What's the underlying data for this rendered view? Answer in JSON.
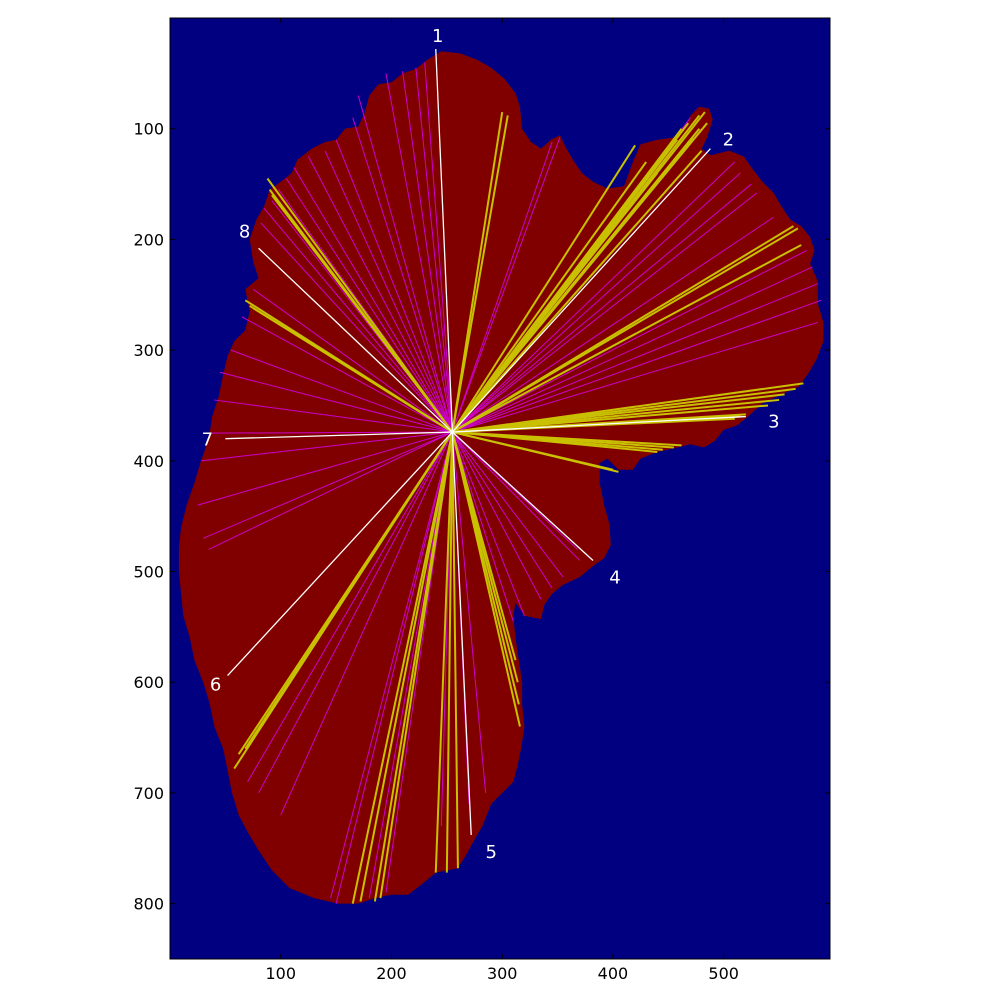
{
  "chart_data": {
    "type": "image-with-overlay",
    "title": "",
    "xlabel": "",
    "ylabel": "",
    "xlim": [
      0,
      596
    ],
    "ylim": [
      850,
      0
    ],
    "x_ticks": [
      100,
      200,
      300,
      400,
      500
    ],
    "y_ticks": [
      100,
      200,
      300,
      400,
      500,
      600,
      700,
      800
    ],
    "x_tick_labels": [
      "100",
      "200",
      "300",
      "400",
      "500"
    ],
    "y_tick_labels": [
      "100",
      "200",
      "300",
      "400",
      "500",
      "600",
      "700",
      "800"
    ],
    "grid": false,
    "colors": {
      "background": "#000080",
      "region": "#800000",
      "magenta_rays": "#cc00cc",
      "yellow_rays": "#c8c000",
      "white_rays": "#ffffff",
      "label_text": "#ffffff"
    },
    "center": [
      255,
      374
    ],
    "region_outline": [
      [
        245,
        30
      ],
      [
        262,
        32
      ],
      [
        278,
        38
      ],
      [
        290,
        45
      ],
      [
        302,
        55
      ],
      [
        312,
        68
      ],
      [
        316,
        80
      ],
      [
        318,
        100
      ],
      [
        326,
        112
      ],
      [
        335,
        118
      ],
      [
        344,
        110
      ],
      [
        352,
        106
      ],
      [
        358,
        118
      ],
      [
        365,
        130
      ],
      [
        372,
        140
      ],
      [
        382,
        148
      ],
      [
        395,
        154
      ],
      [
        410,
        152
      ],
      [
        418,
        130
      ],
      [
        425,
        114
      ],
      [
        440,
        110
      ],
      [
        455,
        108
      ],
      [
        465,
        100
      ],
      [
        470,
        88
      ],
      [
        478,
        80
      ],
      [
        487,
        82
      ],
      [
        490,
        92
      ],
      [
        485,
        108
      ],
      [
        480,
        118
      ],
      [
        488,
        124
      ],
      [
        505,
        120
      ],
      [
        518,
        125
      ],
      [
        525,
        135
      ],
      [
        535,
        148
      ],
      [
        545,
        158
      ],
      [
        552,
        170
      ],
      [
        560,
        182
      ],
      [
        570,
        188
      ],
      [
        578,
        198
      ],
      [
        582,
        210
      ],
      [
        578,
        222
      ],
      [
        585,
        238
      ],
      [
        585,
        258
      ],
      [
        590,
        275
      ],
      [
        590,
        292
      ],
      [
        584,
        308
      ],
      [
        577,
        320
      ],
      [
        568,
        333
      ],
      [
        552,
        340
      ],
      [
        535,
        348
      ],
      [
        522,
        360
      ],
      [
        512,
        368
      ],
      [
        500,
        372
      ],
      [
        492,
        382
      ],
      [
        482,
        388
      ],
      [
        470,
        385
      ],
      [
        458,
        388
      ],
      [
        440,
        392
      ],
      [
        425,
        398
      ],
      [
        418,
        408
      ],
      [
        405,
        408
      ],
      [
        395,
        398
      ],
      [
        388,
        402
      ],
      [
        388,
        420
      ],
      [
        392,
        440
      ],
      [
        397,
        458
      ],
      [
        398,
        476
      ],
      [
        392,
        488
      ],
      [
        382,
        495
      ],
      [
        370,
        505
      ],
      [
        355,
        512
      ],
      [
        345,
        520
      ],
      [
        338,
        530
      ],
      [
        335,
        543
      ],
      [
        320,
        540
      ],
      [
        312,
        528
      ],
      [
        310,
        540
      ],
      [
        312,
        560
      ],
      [
        315,
        580
      ],
      [
        318,
        600
      ],
      [
        318,
        620
      ],
      [
        320,
        640
      ],
      [
        317,
        660
      ],
      [
        314,
        675
      ],
      [
        310,
        690
      ],
      [
        300,
        700
      ],
      [
        290,
        710
      ],
      [
        282,
        730
      ],
      [
        275,
        742
      ],
      [
        268,
        755
      ],
      [
        260,
        768
      ],
      [
        240,
        772
      ],
      [
        228,
        782
      ],
      [
        215,
        792
      ],
      [
        200,
        792
      ],
      [
        185,
        795
      ],
      [
        170,
        800
      ],
      [
        152,
        800
      ],
      [
        130,
        795
      ],
      [
        108,
        786
      ],
      [
        92,
        770
      ],
      [
        80,
        752
      ],
      [
        70,
        735
      ],
      [
        62,
        720
      ],
      [
        56,
        700
      ],
      [
        52,
        680
      ],
      [
        48,
        660
      ],
      [
        40,
        640
      ],
      [
        36,
        620
      ],
      [
        30,
        600
      ],
      [
        22,
        580
      ],
      [
        18,
        560
      ],
      [
        12,
        540
      ],
      [
        10,
        520
      ],
      [
        8,
        500
      ],
      [
        8,
        478
      ],
      [
        10,
        460
      ],
      [
        15,
        440
      ],
      [
        22,
        420
      ],
      [
        28,
        400
      ],
      [
        35,
        380
      ],
      [
        38,
        360
      ],
      [
        44,
        342
      ],
      [
        48,
        322
      ],
      [
        52,
        305
      ],
      [
        58,
        292
      ],
      [
        68,
        282
      ],
      [
        72,
        265
      ],
      [
        68,
        245
      ],
      [
        80,
        235
      ],
      [
        75,
        220
      ],
      [
        72,
        200
      ],
      [
        78,
        182
      ],
      [
        85,
        170
      ],
      [
        90,
        155
      ],
      [
        100,
        148
      ],
      [
        110,
        140
      ],
      [
        115,
        128
      ],
      [
        128,
        118
      ],
      [
        140,
        112
      ],
      [
        150,
        110
      ],
      [
        158,
        100
      ],
      [
        170,
        98
      ],
      [
        176,
        85
      ],
      [
        180,
        70
      ],
      [
        188,
        60
      ],
      [
        200,
        58
      ],
      [
        210,
        50
      ],
      [
        222,
        46
      ],
      [
        232,
        38
      ]
    ],
    "ray_ends_magenta": [
      [
        195,
        50
      ],
      [
        210,
        48
      ],
      [
        222,
        45
      ],
      [
        230,
        40
      ],
      [
        170,
        70
      ],
      [
        165,
        90
      ],
      [
        150,
        110
      ],
      [
        140,
        120
      ],
      [
        125,
        125
      ],
      [
        112,
        135
      ],
      [
        105,
        145
      ],
      [
        98,
        155
      ],
      [
        92,
        165
      ],
      [
        85,
        172
      ],
      [
        82,
        185
      ],
      [
        75,
        245
      ],
      [
        65,
        270
      ],
      [
        55,
        300
      ],
      [
        45,
        320
      ],
      [
        40,
        345
      ],
      [
        35,
        375
      ],
      [
        28,
        400
      ],
      [
        25,
        440
      ],
      [
        30,
        470
      ],
      [
        35,
        480
      ],
      [
        345,
        112
      ],
      [
        352,
        108
      ],
      [
        470,
        90
      ],
      [
        480,
        100
      ],
      [
        510,
        130
      ],
      [
        515,
        140
      ],
      [
        525,
        150
      ],
      [
        530,
        158
      ],
      [
        545,
        180
      ],
      [
        560,
        190
      ],
      [
        575,
        210
      ],
      [
        580,
        225
      ],
      [
        585,
        240
      ],
      [
        588,
        255
      ],
      [
        585,
        275
      ],
      [
        368,
        480
      ],
      [
        370,
        490
      ],
      [
        355,
        505
      ],
      [
        345,
        515
      ],
      [
        335,
        525
      ],
      [
        320,
        540
      ],
      [
        310,
        545
      ],
      [
        285,
        700
      ],
      [
        270,
        710
      ],
      [
        245,
        730
      ],
      [
        195,
        790
      ],
      [
        180,
        795
      ],
      [
        150,
        800
      ],
      [
        145,
        795
      ],
      [
        100,
        720
      ],
      [
        80,
        700
      ],
      [
        70,
        690
      ]
    ],
    "ray_ends_yellow": [
      [
        300,
        85
      ],
      [
        305,
        88
      ],
      [
        420,
        115
      ],
      [
        430,
        130
      ],
      [
        440,
        140
      ],
      [
        458,
        110
      ],
      [
        462,
        100
      ],
      [
        468,
        95
      ],
      [
        478,
        88
      ],
      [
        483,
        85
      ],
      [
        485,
        95
      ],
      [
        478,
        100
      ],
      [
        472,
        108
      ],
      [
        480,
        120
      ],
      [
        563,
        188
      ],
      [
        567,
        190
      ],
      [
        570,
        205
      ],
      [
        572,
        330
      ],
      [
        565,
        335
      ],
      [
        555,
        340
      ],
      [
        550,
        345
      ],
      [
        540,
        350
      ],
      [
        520,
        358
      ],
      [
        515,
        360
      ],
      [
        510,
        362
      ],
      [
        462,
        386
      ],
      [
        455,
        388
      ],
      [
        445,
        390
      ],
      [
        440,
        392
      ],
      [
        400,
        408
      ],
      [
        405,
        410
      ],
      [
        312,
        580
      ],
      [
        314,
        600
      ],
      [
        315,
        620
      ],
      [
        316,
        640
      ],
      [
        190,
        795
      ],
      [
        185,
        798
      ],
      [
        172,
        798
      ],
      [
        165,
        800
      ],
      [
        260,
        768
      ],
      [
        250,
        772
      ],
      [
        240,
        772
      ],
      [
        75,
        650
      ],
      [
        68,
        660
      ],
      [
        62,
        665
      ],
      [
        58,
        678
      ],
      [
        88,
        145
      ],
      [
        90,
        155
      ],
      [
        92,
        160
      ],
      [
        68,
        255
      ],
      [
        72,
        260
      ],
      [
        75,
        262
      ]
    ],
    "labeled_rays": [
      {
        "label": "1",
        "end": [
          240,
          28
        ]
      },
      {
        "label": "2",
        "end": [
          488,
          118
        ]
      },
      {
        "label": "3",
        "end": [
          520,
          360
        ]
      },
      {
        "label": "4",
        "end": [
          382,
          490
        ]
      },
      {
        "label": "5",
        "end": [
          272,
          738
        ]
      },
      {
        "label": "6",
        "end": [
          52,
          594
        ]
      },
      {
        "label": "7",
        "end": [
          50,
          380
        ]
      },
      {
        "label": "8",
        "end": [
          80,
          208
        ]
      }
    ],
    "label_offsets": {
      "1": [
        2,
        -12
      ],
      "2": [
        18,
        -8
      ],
      "3": [
        28,
        6
      ],
      "4": [
        22,
        18
      ],
      "5": [
        20,
        18
      ],
      "6": [
        -12,
        10
      ],
      "7": [
        -18,
        2
      ],
      "8": [
        -14,
        -16
      ]
    }
  }
}
